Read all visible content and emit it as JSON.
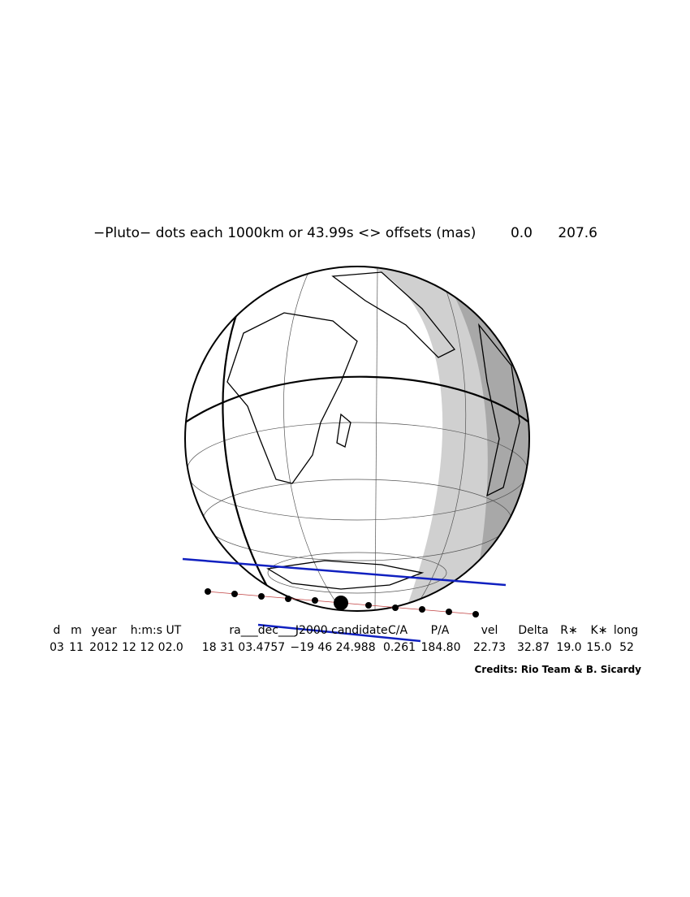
{
  "header": {
    "title": "−Pluto− dots each 1000km or 43.99s <> offsets (mas)",
    "offsets": [
      "0.0",
      "207.6"
    ]
  },
  "table": {
    "columns": [
      "d",
      "m",
      "year",
      "h:m:s UT",
      "ra___dec___J2000 candidate",
      "C/A",
      "P/A",
      "vel",
      "Delta",
      "R∗",
      "K∗",
      "long"
    ],
    "values": [
      "03",
      "11",
      "2012",
      "12 12 02.0",
      "18 31 03.4757",
      "−19 46 24.988",
      "0.261",
      "184.80",
      "22.73",
      "32.87",
      "19.0",
      "15.0",
      "52"
    ]
  },
  "credits": "Credits: Rio Team & B. Sicardy"
}
